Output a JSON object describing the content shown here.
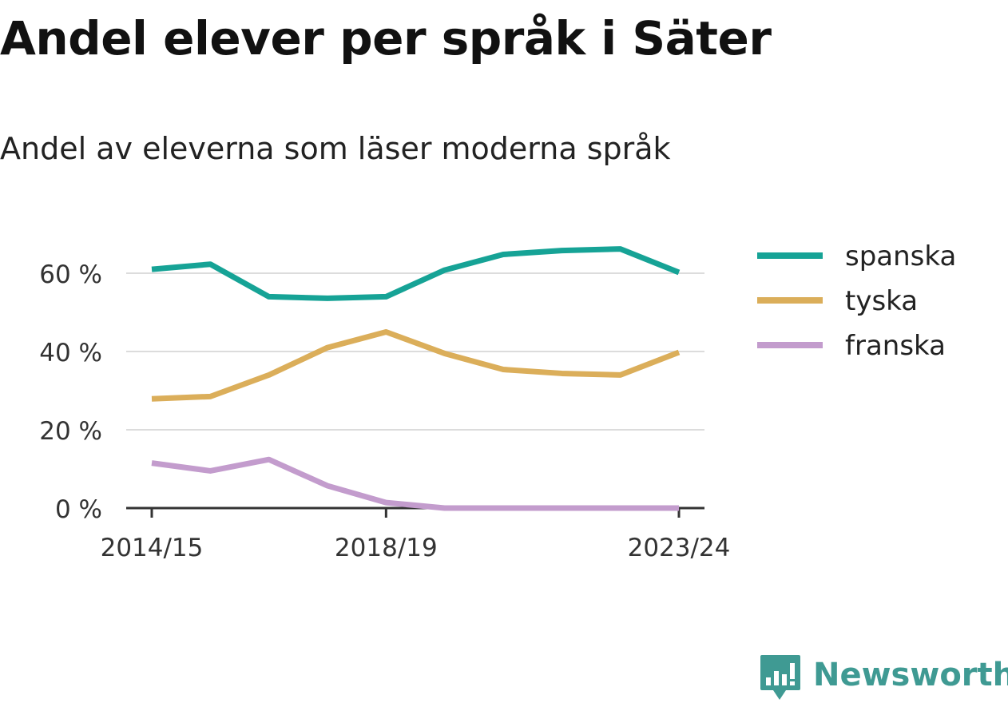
{
  "title": "Andel elever per språk i Säter",
  "subtitle": "Andel av eleverna som läser moderna språk",
  "brand": "Newsworthy",
  "brand_color": "#3f9a93",
  "chart_data": {
    "type": "line",
    "x": [
      "2014/15",
      "2015/16",
      "2016/17",
      "2017/18",
      "2018/19",
      "2019/20",
      "2020/21",
      "2021/22",
      "2022/23",
      "2023/24"
    ],
    "x_tick_labels": [
      "2014/15",
      "2018/19",
      "2023/24"
    ],
    "y_ticks": [
      0,
      20,
      40,
      60
    ],
    "y_tick_labels": [
      "0 %",
      "20 %",
      "40 %",
      "60 %"
    ],
    "ylim": [
      0,
      70
    ],
    "grid": true,
    "legend_position": "right",
    "series": [
      {
        "name": "spanska",
        "color": "#16a396",
        "values": [
          61,
          62.3,
          54,
          53.6,
          54,
          60.8,
          64.8,
          65.8,
          66.2,
          60.2
        ]
      },
      {
        "name": "tyska",
        "color": "#dbae5a",
        "values": [
          27.9,
          28.5,
          34,
          41,
          45,
          39.5,
          35.4,
          34.4,
          34,
          39.8
        ]
      },
      {
        "name": "franska",
        "color": "#c39ccd",
        "values": [
          11.5,
          9.5,
          12.4,
          5.7,
          1.4,
          0,
          0,
          0,
          0,
          0
        ]
      }
    ]
  }
}
